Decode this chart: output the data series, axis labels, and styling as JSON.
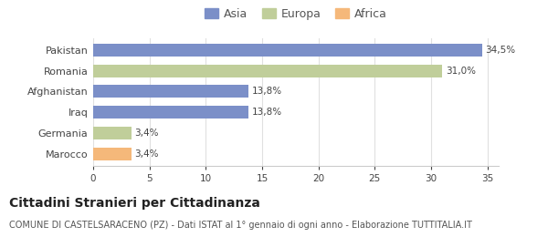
{
  "categories": [
    "Pakistan",
    "Romania",
    "Afghanistan",
    "Iraq",
    "Germania",
    "Marocco"
  ],
  "values": [
    34.5,
    31.0,
    13.8,
    13.8,
    3.4,
    3.4
  ],
  "bar_colors": [
    "#7b8fc8",
    "#c0ce9a",
    "#7b8fc8",
    "#7b8fc8",
    "#c0ce9a",
    "#f5b87a"
  ],
  "labels": [
    "34,5%",
    "31,0%",
    "13,8%",
    "13,8%",
    "3,4%",
    "3,4%"
  ],
  "legend": {
    "Asia": "#7b8fc8",
    "Europa": "#c0ce9a",
    "Africa": "#f5b87a"
  },
  "xlim": [
    0,
    36
  ],
  "xticks": [
    0,
    5,
    10,
    15,
    20,
    25,
    30,
    35
  ],
  "title": "Cittadini Stranieri per Cittadinanza",
  "subtitle": "COMUNE DI CASTELSARACENO (PZ) - Dati ISTAT al 1° gennaio di ogni anno - Elaborazione TUTTITALIA.IT",
  "background_color": "#ffffff",
  "bar_height": 0.62,
  "title_fontsize": 10,
  "subtitle_fontsize": 7,
  "label_fontsize": 7.5,
  "ytick_fontsize": 8,
  "xtick_fontsize": 7.5,
  "legend_fontsize": 9
}
